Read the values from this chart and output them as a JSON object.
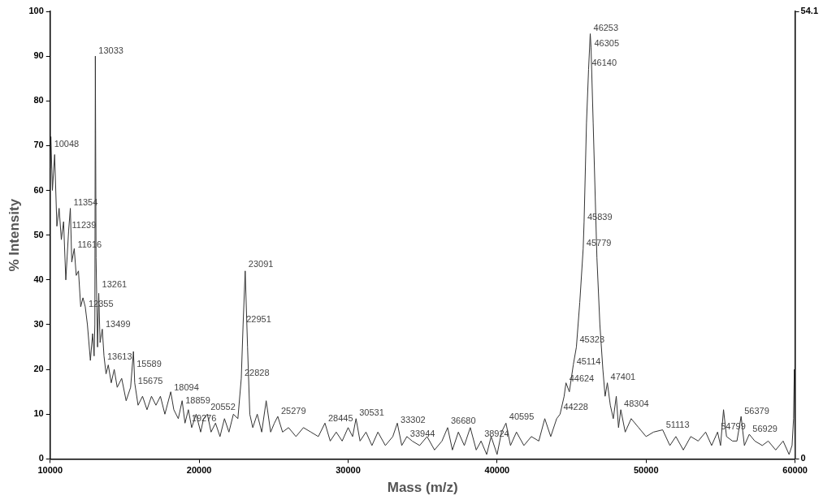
{
  "chart_data": {
    "type": "line",
    "xlabel": "Mass (m/z)",
    "ylabel": "% Intensity",
    "xlim": [
      10000,
      60000
    ],
    "xticks": [
      10000,
      20000,
      30000,
      40000,
      50000,
      60000
    ],
    "ylim": [
      0,
      100
    ],
    "yticks": [
      0,
      10,
      20,
      30,
      40,
      50,
      60,
      70,
      80,
      90,
      100
    ],
    "y2lim": [
      0,
      54.1
    ],
    "y2ticks": [
      0,
      54.1
    ],
    "grid": false,
    "legend": false,
    "marker": "none",
    "line_style": "solid",
    "series": [
      {
        "color": "#333333",
        "x": [
          10000,
          10048,
          10150,
          10300,
          10450,
          10600,
          10750,
          10900,
          11050,
          11239,
          11354,
          11450,
          11616,
          11750,
          11900,
          12050,
          12200,
          12355,
          12500,
          12700,
          12850,
          12950,
          13000,
          13033,
          13080,
          13180,
          13261,
          13350,
          13499,
          13613,
          13750,
          13900,
          14100,
          14300,
          14500,
          14800,
          15100,
          15400,
          15589,
          15675,
          15900,
          16200,
          16500,
          16800,
          17100,
          17400,
          17700,
          18094,
          18300,
          18600,
          18859,
          19050,
          19276,
          19500,
          19800,
          20100,
          20300,
          20552,
          20800,
          21100,
          21400,
          21700,
          22000,
          22300,
          22600,
          22828,
          22951,
          23091,
          23250,
          23400,
          23600,
          23900,
          24200,
          24500,
          24800,
          25050,
          25279,
          25600,
          26000,
          26500,
          27000,
          27500,
          28000,
          28445,
          28800,
          29200,
          29600,
          30000,
          30300,
          30531,
          30800,
          31200,
          31600,
          32000,
          32500,
          33000,
          33302,
          33600,
          33944,
          34300,
          34800,
          35300,
          35800,
          36300,
          36680,
          37000,
          37400,
          37800,
          38200,
          38600,
          38924,
          39300,
          39600,
          40000,
          40300,
          40595,
          40900,
          41300,
          41800,
          42300,
          42800,
          43200,
          43600,
          44000,
          44228,
          44500,
          44624,
          44850,
          45114,
          45323,
          45550,
          45779,
          45839,
          46000,
          46140,
          46253,
          46305,
          46450,
          46700,
          46900,
          47100,
          47250,
          47401,
          47600,
          47800,
          48000,
          48150,
          48304,
          48600,
          49000,
          49500,
          50000,
          50500,
          51113,
          51600,
          52000,
          52500,
          53000,
          53500,
          54000,
          54400,
          54799,
          55000,
          55200,
          55400,
          55800,
          56100,
          56379,
          56600,
          56929,
          57300,
          57800,
          58200,
          58700,
          59200,
          59600,
          59800,
          59900,
          59950,
          60000
        ],
        "values": [
          65,
          72,
          60,
          68,
          52,
          56,
          49,
          53,
          40,
          51,
          56,
          44,
          47,
          41,
          42,
          34,
          36,
          34,
          30,
          22,
          28,
          23,
          30,
          90,
          45,
          25,
          37,
          26,
          29,
          23,
          19,
          21,
          17,
          20,
          16,
          18,
          13,
          16,
          24,
          17,
          12,
          14,
          11,
          14,
          12,
          14,
          10,
          15,
          11,
          9,
          13,
          8,
          11,
          7,
          10,
          6,
          9,
          10,
          6,
          8,
          5,
          9,
          6,
          10,
          9,
          18,
          30,
          42,
          25,
          10,
          7,
          10,
          6,
          13,
          6,
          8,
          9.5,
          6,
          7,
          5,
          7,
          6,
          5,
          8,
          4,
          6,
          4,
          7,
          5,
          9,
          4,
          6,
          3,
          6,
          3,
          5,
          8,
          3,
          5,
          4,
          3,
          5,
          2,
          4,
          7,
          2,
          6,
          3,
          7,
          2,
          4,
          1,
          5,
          1,
          6,
          8,
          3,
          6,
          3,
          5,
          4,
          9,
          5,
          9,
          10,
          14,
          17,
          15,
          21,
          25,
          35,
          47,
          53,
          75,
          87,
          95,
          92,
          75,
          45,
          30,
          20,
          14,
          17,
          12,
          9,
          14,
          7,
          11,
          6,
          9,
          7,
          5,
          6,
          6.5,
          3,
          5,
          2,
          5,
          4,
          6,
          3,
          6,
          3,
          11,
          5,
          4,
          4,
          9.5,
          3,
          5.5,
          4,
          3,
          4,
          2,
          4,
          1,
          3,
          9,
          20,
          0
        ]
      }
    ],
    "annotations": [
      {
        "text": "10048",
        "x": 10048,
        "y": 69
      },
      {
        "text": "11354",
        "x": 11354,
        "y": 56
      },
      {
        "text": "11239",
        "x": 11239,
        "y": 51
      },
      {
        "text": "11616",
        "x": 11616,
        "y": 46.6
      },
      {
        "text": "13033",
        "x": 13033,
        "y": 90
      },
      {
        "text": "13261",
        "x": 13261,
        "y": 37.7
      },
      {
        "text": "12355",
        "x": 12355,
        "y": 33.3
      },
      {
        "text": "13499",
        "x": 13499,
        "y": 28.8
      },
      {
        "text": "13613",
        "x": 13613,
        "y": 21.5
      },
      {
        "text": "15589",
        "x": 15589,
        "y": 20
      },
      {
        "text": "15675",
        "x": 15675,
        "y": 16.2
      },
      {
        "text": "18094",
        "x": 18094,
        "y": 14.6
      },
      {
        "text": "18859",
        "x": 18859,
        "y": 11.8
      },
      {
        "text": "19276",
        "x": 19276,
        "y": 7.7
      },
      {
        "text": "20552",
        "x": 20552,
        "y": 10.4
      },
      {
        "text": "23091",
        "x": 23091,
        "y": 42.3
      },
      {
        "text": "22951",
        "x": 22951,
        "y": 30
      },
      {
        "text": "22828",
        "x": 22828,
        "y": 17.9
      },
      {
        "text": "25279",
        "x": 25279,
        "y": 9.5
      },
      {
        "text": "28445",
        "x": 28445,
        "y": 7.8
      },
      {
        "text": "30531",
        "x": 30531,
        "y": 9.1
      },
      {
        "text": "33302",
        "x": 33302,
        "y": 7.5
      },
      {
        "text": "33944",
        "x": 33944,
        "y": 4.4
      },
      {
        "text": "36680",
        "x": 36680,
        "y": 7.3
      },
      {
        "text": "38924",
        "x": 38924,
        "y": 4.4
      },
      {
        "text": "40595",
        "x": 40595,
        "y": 8.2
      },
      {
        "text": "44228",
        "x": 44228,
        "y": 10.4
      },
      {
        "text": "44624",
        "x": 44624,
        "y": 16.6
      },
      {
        "text": "45114",
        "x": 45114,
        "y": 20.4
      },
      {
        "text": "45323",
        "x": 45323,
        "y": 25.3
      },
      {
        "text": "45779",
        "x": 45779,
        "y": 47
      },
      {
        "text": "45839",
        "x": 45839,
        "y": 52.8
      },
      {
        "text": "46140",
        "x": 46140,
        "y": 87.2
      },
      {
        "text": "46305",
        "x": 46305,
        "y": 91.6
      },
      {
        "text": "46253",
        "x": 46253,
        "y": 95
      },
      {
        "text": "47401",
        "x": 47401,
        "y": 17
      },
      {
        "text": "48304",
        "x": 48304,
        "y": 11.1
      },
      {
        "text": "51113",
        "x": 51113,
        "y": 6.4
      },
      {
        "text": "54799",
        "x": 54799,
        "y": 6
      },
      {
        "text": "56379",
        "x": 56379,
        "y": 9.5
      },
      {
        "text": "56929",
        "x": 56929,
        "y": 5.5
      }
    ]
  }
}
